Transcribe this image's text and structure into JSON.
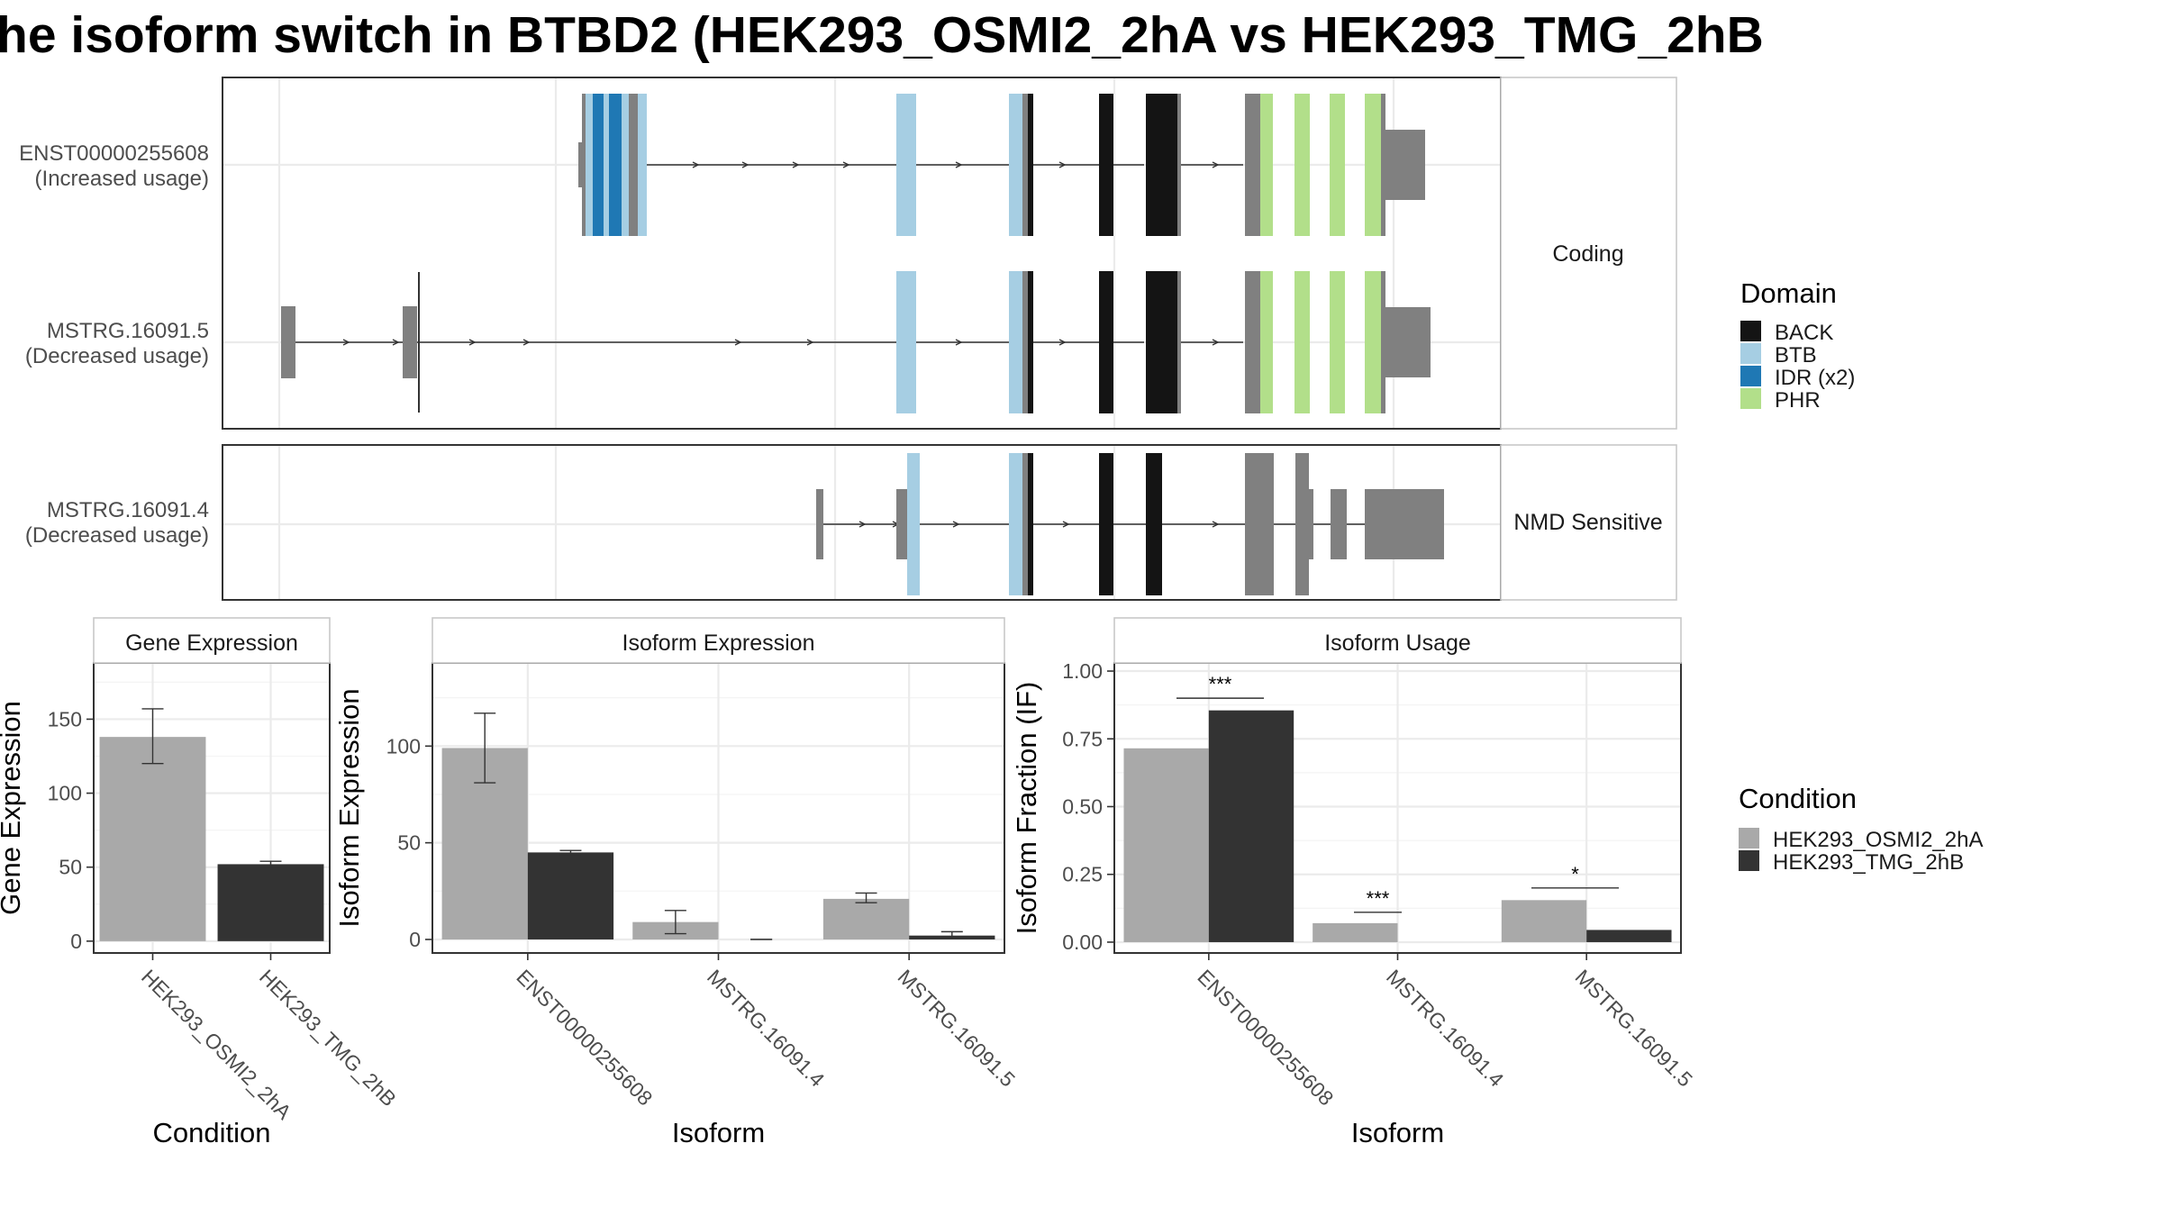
{
  "title": "he isoform switch in BTBD2 (HEK293_OSMI2_2hA vs HEK293_TMG_2hB",
  "colors": {
    "BACK": "#141414",
    "BTB": "#a6cee3",
    "IDR": "#1f78b4",
    "PHR": "#b2df8a",
    "noncoding": "#808080",
    "cond1": "#a9a9a9",
    "cond2": "#333333"
  },
  "transcript_panels": [
    {
      "strip": "Coding",
      "transcripts": [
        {
          "id": "ENST00000255608",
          "usage": "(Increased usage)"
        },
        {
          "id": "MSTRG.16091.5",
          "usage": "(Decreased usage)"
        }
      ]
    },
    {
      "strip": "NMD Sensitive",
      "transcripts": [
        {
          "id": "MSTRG.16091.4",
          "usage": "(Decreased usage)"
        }
      ]
    }
  ],
  "domain_legend": {
    "title": "Domain",
    "items": [
      {
        "label": "BACK",
        "color": "#141414"
      },
      {
        "label": "BTB",
        "color": "#a6cee3"
      },
      {
        "label": "IDR (x2)",
        "color": "#1f78b4"
      },
      {
        "label": "PHR",
        "color": "#b2df8a"
      }
    ]
  },
  "condition_legend": {
    "title": "Condition",
    "items": [
      {
        "label": "HEK293_OSMI2_2hA",
        "color": "#a9a9a9"
      },
      {
        "label": "HEK293_TMG_2hB",
        "color": "#333333"
      }
    ]
  },
  "chart_data": [
    {
      "type": "bar",
      "strip": "Gene Expression",
      "xlabel": "Condition",
      "ylabel": "Gene Expression",
      "categories": [
        "HEK293_OSMI2_2hA",
        "HEK293_TMG_2hB"
      ],
      "values": [
        138,
        52
      ],
      "errors_low": [
        120,
        50
      ],
      "errors_high": [
        157,
        54
      ],
      "ylim": [
        -8,
        188
      ],
      "yticks": [
        0,
        50,
        100,
        150
      ]
    },
    {
      "type": "bar",
      "strip": "Isoform Expression",
      "xlabel": "Isoform",
      "ylabel": "Isoform Expression",
      "categories": [
        "ENST00000255608",
        "MSTRG.16091.4",
        "MSTRG.16091.5"
      ],
      "series": [
        {
          "name": "HEK293_OSMI2_2hA",
          "values": [
            99,
            9,
            21
          ],
          "err_low": [
            81,
            3,
            19
          ],
          "err_high": [
            117,
            15,
            24
          ]
        },
        {
          "name": "HEK293_TMG_2hB",
          "values": [
            45,
            0,
            2
          ],
          "err_low": [
            44,
            0,
            1
          ],
          "err_high": [
            46,
            0,
            4
          ]
        }
      ],
      "ylim": [
        -7,
        143
      ],
      "yticks": [
        0,
        50,
        100
      ]
    },
    {
      "type": "bar",
      "strip": "Isoform Usage",
      "xlabel": "Isoform",
      "ylabel": "Isoform Fraction (IF)",
      "categories": [
        "ENST00000255608",
        "MSTRG.16091.4",
        "MSTRG.16091.5"
      ],
      "series": [
        {
          "name": "HEK293_OSMI2_2hA",
          "values": [
            0.715,
            0.07,
            0.155
          ]
        },
        {
          "name": "HEK293_TMG_2hB",
          "values": [
            0.855,
            0.0,
            0.045
          ]
        }
      ],
      "significance": [
        {
          "label": "***",
          "y": 0.9
        },
        {
          "label": "***",
          "y": 0.11
        },
        {
          "label": "*",
          "y": 0.2
        }
      ],
      "ylim": [
        -0.04,
        1.03
      ],
      "yticks": [
        "0.00",
        "0.25",
        "0.50",
        "0.75",
        "1.00"
      ]
    }
  ]
}
